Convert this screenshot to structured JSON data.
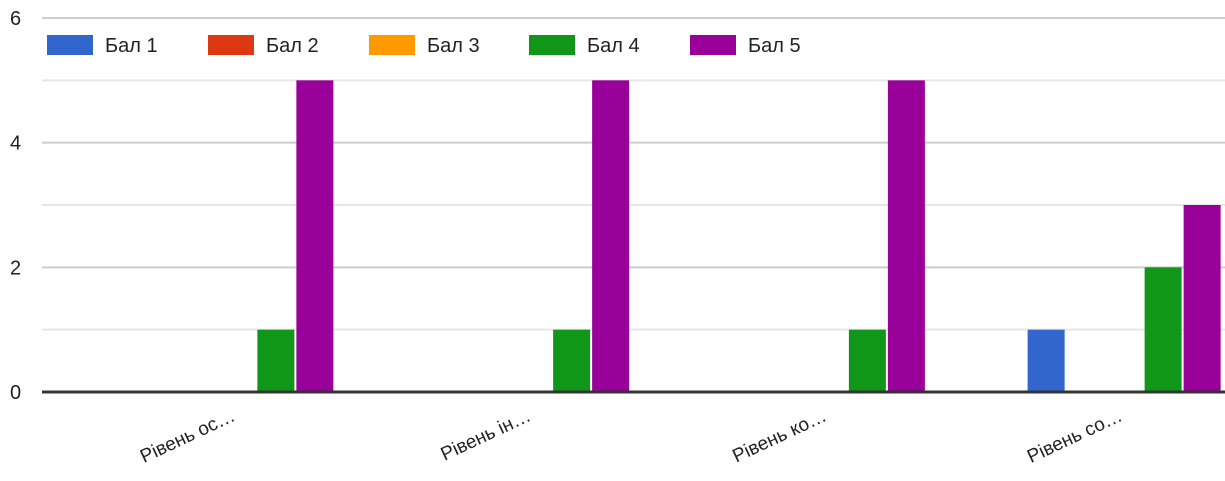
{
  "chart_data": {
    "type": "bar",
    "categories": [
      "Рівень ос…",
      "Рівень ін…",
      "Рівень ко…",
      "Рівень со…"
    ],
    "series": [
      {
        "name": "Бал 1",
        "color": "#3366cc",
        "values": [
          0,
          0,
          0,
          1
        ]
      },
      {
        "name": "Бал 2",
        "color": "#dc3912",
        "values": [
          0,
          0,
          0,
          0
        ]
      },
      {
        "name": "Бал 3",
        "color": "#ff9900",
        "values": [
          0,
          0,
          0,
          0
        ]
      },
      {
        "name": "Бал 4",
        "color": "#109618",
        "values": [
          1,
          1,
          1,
          2
        ]
      },
      {
        "name": "Бал 5",
        "color": "#990099",
        "values": [
          5,
          5,
          5,
          3
        ]
      }
    ],
    "y_ticks": [
      "0",
      "2",
      "4",
      "6"
    ],
    "ylim": [
      0,
      6
    ],
    "gridlines": "every 1, major labeled every 2",
    "legend_position": "top-left",
    "title": "",
    "xlabel": "",
    "ylabel": ""
  }
}
